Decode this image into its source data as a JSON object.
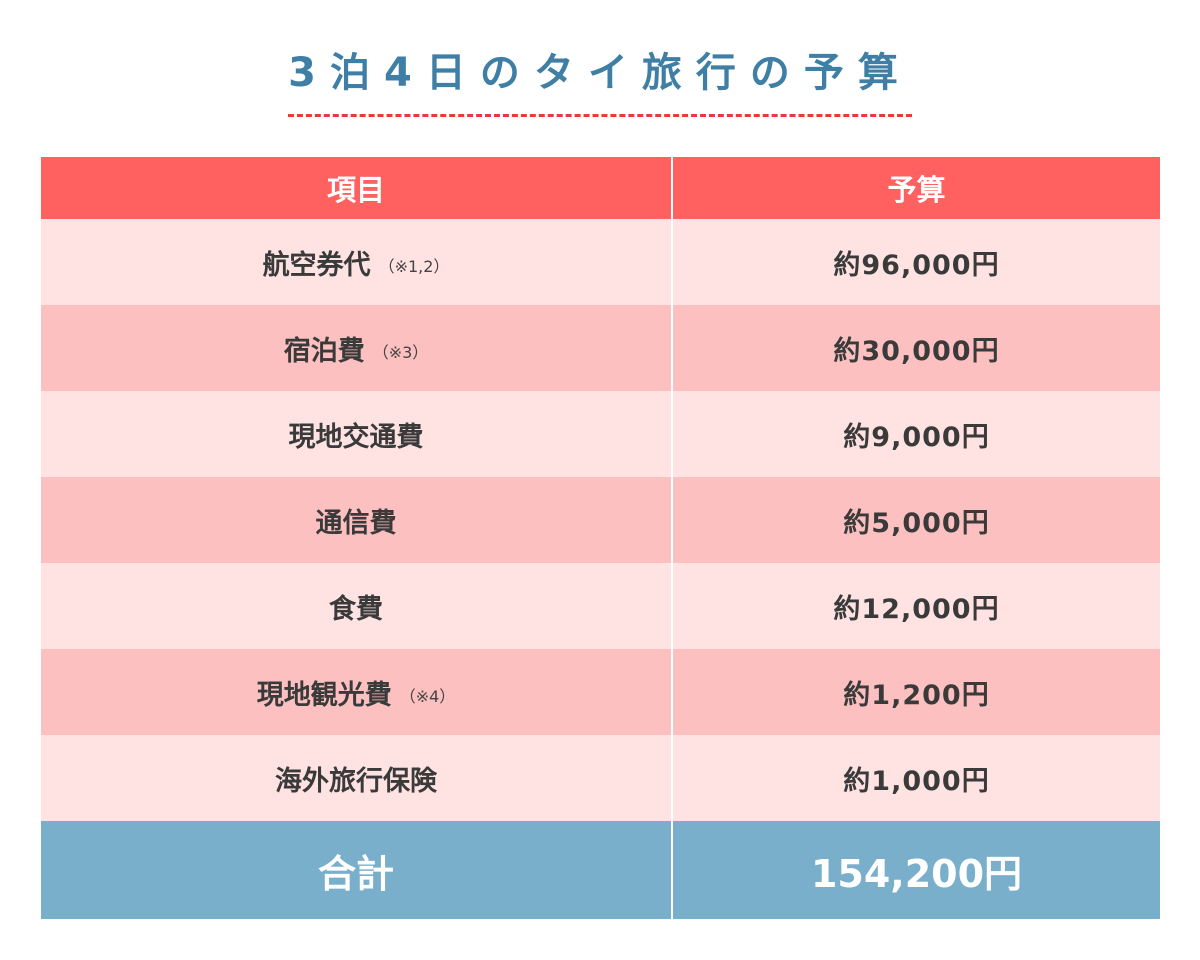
{
  "title": "3泊4日のタイ旅行の予算",
  "table": {
    "header": {
      "item": "項目",
      "budget": "予算"
    },
    "rows": [
      {
        "item": "航空券代",
        "note": "（※1,2）",
        "budget": "約96,000円"
      },
      {
        "item": "宿泊費",
        "note": "（※3）",
        "budget": "約30,000円"
      },
      {
        "item": "現地交通費",
        "note": "",
        "budget": "約9,000円"
      },
      {
        "item": "通信費",
        "note": "",
        "budget": "約5,000円"
      },
      {
        "item": "食費",
        "note": "",
        "budget": "約12,000円"
      },
      {
        "item": "現地観光費",
        "note": "（※4）",
        "budget": "約1,200円"
      },
      {
        "item": "海外旅行保険",
        "note": "",
        "budget": "約1,000円"
      }
    ],
    "total": {
      "label": "合計",
      "value": "154,200円"
    }
  },
  "colors": {
    "title": "#3f7fa6",
    "title_underline": "#e8393f",
    "header_bg": "#fe6160",
    "row_light": "#ffe3e3",
    "row_dark": "#fbc0bf",
    "total_bg": "#79afcb"
  }
}
